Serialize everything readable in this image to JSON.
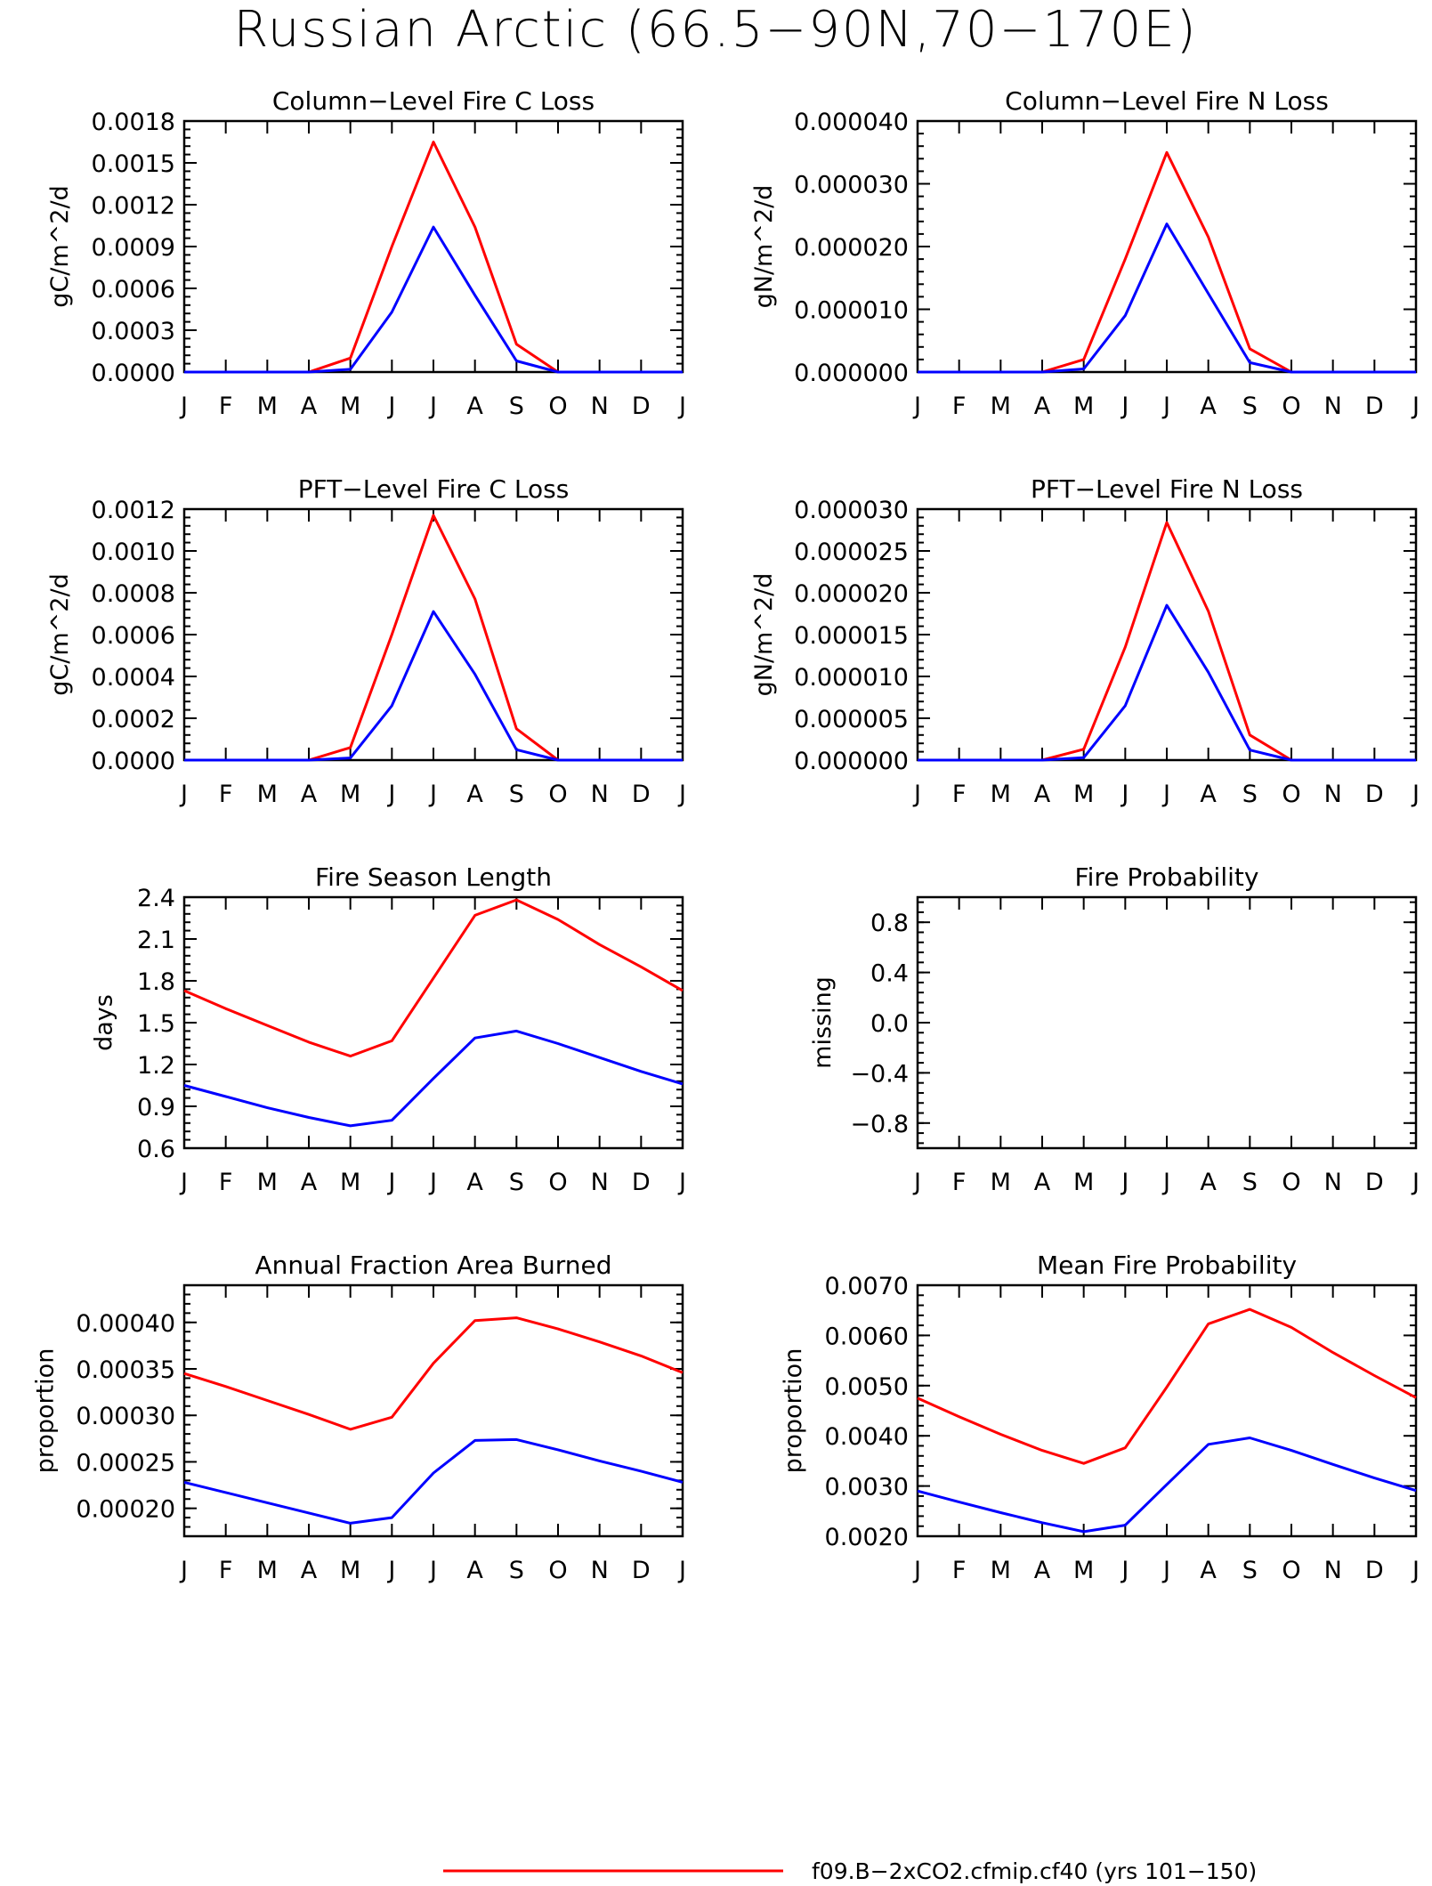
{
  "page_title": "Russian Arctic (66.5−90N,70−170E)",
  "legend": [
    {
      "label": "f09.B−2xCO2.cfmip.cf40 (yrs 101−150)",
      "color": "#ff0000"
    }
  ],
  "colors": {
    "red": "#ff0000",
    "blue": "#0000ff"
  },
  "chart_data": [
    {
      "type": "line",
      "title": "Column−Level Fire C Loss",
      "ylabel": "gC/m^2/d",
      "x": [
        "J",
        "F",
        "M",
        "A",
        "M",
        "J",
        "J",
        "A",
        "S",
        "O",
        "N",
        "D",
        "J"
      ],
      "ylim": [
        0,
        0.0018
      ],
      "yticks": [
        "0.0000",
        "0.0003",
        "0.0006",
        "0.0009",
        "0.0012",
        "0.0015",
        "0.0018"
      ],
      "series": [
        {
          "color": "#ff0000",
          "values": [
            0,
            0,
            0,
            0,
            0.0001,
            0.0009,
            0.00165,
            0.00104,
            0.0002,
            0,
            0,
            0,
            0
          ]
        },
        {
          "color": "#0000ff",
          "values": [
            0,
            0,
            0,
            0,
            2e-05,
            0.00043,
            0.00104,
            0.00055,
            8e-05,
            0,
            0,
            0,
            0
          ]
        }
      ]
    },
    {
      "type": "line",
      "title": "Column−Level Fire N Loss",
      "ylabel": "gN/m^2/d",
      "x": [
        "J",
        "F",
        "M",
        "A",
        "M",
        "J",
        "J",
        "A",
        "S",
        "O",
        "N",
        "D",
        "J"
      ],
      "ylim": [
        0,
        4e-05
      ],
      "yticks": [
        "0.000000",
        "0.000010",
        "0.000020",
        "0.000030",
        "0.000040"
      ],
      "series": [
        {
          "color": "#ff0000",
          "values": [
            0,
            0,
            0,
            0,
            2e-06,
            1.8e-05,
            3.5e-05,
            2.15e-05,
            3.7e-06,
            0,
            0,
            0,
            0
          ]
        },
        {
          "color": "#0000ff",
          "values": [
            0,
            0,
            0,
            0,
            5e-07,
            9e-06,
            2.36e-05,
            1.25e-05,
            1.5e-06,
            0,
            0,
            0,
            0
          ]
        }
      ]
    },
    {
      "type": "line",
      "title": "PFT−Level Fire C Loss",
      "ylabel": "gC/m^2/d",
      "x": [
        "J",
        "F",
        "M",
        "A",
        "M",
        "J",
        "J",
        "A",
        "S",
        "O",
        "N",
        "D",
        "J"
      ],
      "ylim": [
        0,
        0.0012
      ],
      "yticks": [
        "0.0000",
        "0.0002",
        "0.0004",
        "0.0006",
        "0.0008",
        "0.0010",
        "0.0012"
      ],
      "series": [
        {
          "color": "#ff0000",
          "values": [
            0,
            0,
            0,
            0,
            6e-05,
            0.0006,
            0.00117,
            0.00077,
            0.00015,
            0,
            0,
            0,
            0
          ]
        },
        {
          "color": "#0000ff",
          "values": [
            0,
            0,
            0,
            0,
            1e-05,
            0.00026,
            0.00071,
            0.00041,
            5e-05,
            0,
            0,
            0,
            0
          ]
        }
      ]
    },
    {
      "type": "line",
      "title": "PFT−Level Fire N Loss",
      "ylabel": "gN/m^2/d",
      "x": [
        "J",
        "F",
        "M",
        "A",
        "M",
        "J",
        "J",
        "A",
        "S",
        "O",
        "N",
        "D",
        "J"
      ],
      "ylim": [
        0,
        3e-05
      ],
      "yticks": [
        "0.000000",
        "0.000005",
        "0.000010",
        "0.000015",
        "0.000020",
        "0.000025",
        "0.000030"
      ],
      "series": [
        {
          "color": "#ff0000",
          "values": [
            0,
            0,
            0,
            0,
            1.3e-06,
            1.35e-05,
            2.84e-05,
            1.78e-05,
            3e-06,
            0,
            0,
            0,
            0
          ]
        },
        {
          "color": "#0000ff",
          "values": [
            0,
            0,
            0,
            0,
            3e-07,
            6.5e-06,
            1.85e-05,
            1.05e-05,
            1.2e-06,
            0,
            0,
            0,
            0
          ]
        }
      ]
    },
    {
      "type": "line",
      "title": "Fire Season Length",
      "ylabel": "days",
      "x": [
        "J",
        "F",
        "M",
        "A",
        "M",
        "J",
        "J",
        "A",
        "S",
        "O",
        "N",
        "D",
        "J"
      ],
      "ylim": [
        0.6,
        2.4
      ],
      "yticks": [
        "0.6",
        "0.9",
        "1.2",
        "1.5",
        "1.8",
        "2.1",
        "2.4"
      ],
      "series": [
        {
          "color": "#ff0000",
          "values": [
            1.73,
            1.6,
            1.48,
            1.36,
            1.26,
            1.37,
            1.82,
            2.27,
            2.38,
            2.24,
            2.06,
            1.9,
            1.73
          ]
        },
        {
          "color": "#0000ff",
          "values": [
            1.05,
            0.97,
            0.89,
            0.82,
            0.76,
            0.8,
            1.1,
            1.39,
            1.44,
            1.35,
            1.25,
            1.15,
            1.06
          ]
        }
      ]
    },
    {
      "type": "line",
      "title": "Fire Probability",
      "ylabel": "missing",
      "x": [
        "J",
        "F",
        "M",
        "A",
        "M",
        "J",
        "J",
        "A",
        "S",
        "O",
        "N",
        "D",
        "J"
      ],
      "ylim": [
        -1,
        1
      ],
      "yticks": [
        "−0.8",
        "−0.4",
        "0.0",
        "0.4",
        "0.8"
      ],
      "series": []
    },
    {
      "type": "line",
      "title": "Annual Fraction Area Burned",
      "ylabel": "proportion",
      "x": [
        "J",
        "F",
        "M",
        "A",
        "M",
        "J",
        "J",
        "A",
        "S",
        "O",
        "N",
        "D",
        "J"
      ],
      "ylim": [
        0.00017,
        0.00044
      ],
      "yticks": [
        "0.00020",
        "0.00025",
        "0.00030",
        "0.00035",
        "0.00040"
      ],
      "series": [
        {
          "color": "#ff0000",
          "values": [
            0.000345,
            0.000331,
            0.000316,
            0.000301,
            0.000285,
            0.000298,
            0.000356,
            0.000402,
            0.000405,
            0.000393,
            0.000379,
            0.000364,
            0.000346
          ]
        },
        {
          "color": "#0000ff",
          "values": [
            0.000228,
            0.000217,
            0.000206,
            0.000195,
            0.000184,
            0.00019,
            0.000238,
            0.000273,
            0.000274,
            0.000263,
            0.000251,
            0.00024,
            0.000228
          ]
        }
      ]
    },
    {
      "type": "line",
      "title": "Mean Fire Probability",
      "ylabel": "proportion",
      "x": [
        "J",
        "F",
        "M",
        "A",
        "M",
        "J",
        "J",
        "A",
        "S",
        "O",
        "N",
        "D",
        "J"
      ],
      "ylim": [
        0.002,
        0.007
      ],
      "yticks": [
        "0.0020",
        "0.0030",
        "0.0040",
        "0.0050",
        "0.0060",
        "0.0070"
      ],
      "series": [
        {
          "color": "#ff0000",
          "values": [
            0.00475,
            0.00438,
            0.00403,
            0.00371,
            0.00345,
            0.00376,
            0.00497,
            0.00623,
            0.00652,
            0.00616,
            0.00566,
            0.0052,
            0.00476
          ]
        },
        {
          "color": "#0000ff",
          "values": [
            0.0029,
            0.00268,
            0.00247,
            0.00227,
            0.00209,
            0.00222,
            0.00303,
            0.00383,
            0.00396,
            0.00371,
            0.00343,
            0.00316,
            0.00291
          ]
        }
      ]
    }
  ]
}
